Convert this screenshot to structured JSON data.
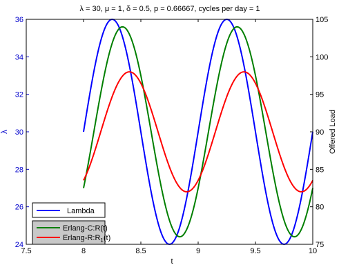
{
  "chart_data": {
    "type": "line",
    "title": "λ = 30, μ = 1, δ = 0.5, p = 0.66667, cycles per day = 1",
    "xlabel": "t",
    "ylabel_left": "λ",
    "ylabel_right": "Offered Load",
    "xlim": [
      7.5,
      10
    ],
    "ylim_left": [
      24,
      36
    ],
    "ylim_right": [
      75,
      105
    ],
    "xticks": [
      "7.5",
      "8",
      "8.5",
      "9",
      "9.5",
      "10"
    ],
    "yticks_left": [
      "24",
      "26",
      "28",
      "30",
      "32",
      "34",
      "36"
    ],
    "yticks_right": [
      "75",
      "80",
      "85",
      "90",
      "95",
      "100",
      "105"
    ],
    "grid": false,
    "colors": {
      "left_axis": "#0000cc",
      "lambda": "#0000ff",
      "erlang_c": "#007f00",
      "erlang_r": "#ff0000",
      "legend2_bg": "#c8c8c8"
    },
    "legends": [
      {
        "placement": "lower-left",
        "entries": [
          {
            "label": "Lambda",
            "color": "#0000ff"
          }
        ]
      },
      {
        "placement": "lower-left",
        "entries": [
          {
            "label": "Erlang-C:R(t)",
            "color": "#007f00"
          },
          {
            "label": "Erlang-R:R1(t)",
            "color": "#ff0000",
            "rich": [
              "Erlang-R:R",
              "1",
              "(t)"
            ]
          }
        ]
      }
    ],
    "series": [
      {
        "name": "Lambda",
        "axis": "left",
        "x_start": 8.0,
        "x_end": 10.0,
        "y_start": 30,
        "amplitude": 6,
        "mean": 30,
        "period": 1,
        "peaks_at": [
          8.25,
          9.25
        ],
        "troughs_at": [
          8.75,
          9.75
        ]
      },
      {
        "name": "Erlang-C:R(t)",
        "axis": "right",
        "x_start": 8.0,
        "x_end": 10.0,
        "y_start": 81,
        "amplitude": 14,
        "mean": 90,
        "period": 1,
        "peaks_at": [
          8.34,
          9.34
        ],
        "troughs_at": [
          8.84,
          9.84
        ]
      },
      {
        "name": "Erlang-R:R1(t)",
        "axis": "right",
        "x_start": 8.0,
        "x_end": 10.0,
        "y_start": 84,
        "amplitude": 8,
        "mean": 90,
        "period": 1,
        "peaks_at": [
          8.4,
          9.4
        ],
        "troughs_at": [
          8.9,
          9.9
        ]
      }
    ]
  }
}
